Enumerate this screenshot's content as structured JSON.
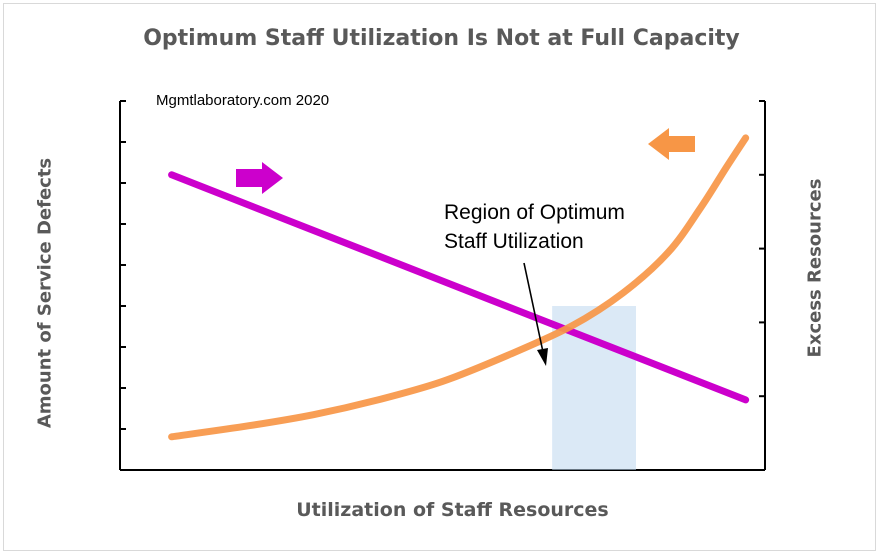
{
  "chart_data": {
    "type": "line",
    "title": "Optimum Staff Utilization Is Not at Full Capacity",
    "xlabel": "Utilization of Staff Resources",
    "ylabel_left": "Amount of Service Defects",
    "ylabel_right": "Excess Resources",
    "xlim": [
      0,
      1
    ],
    "ylim": [
      0,
      1
    ],
    "grid": false,
    "series": [
      {
        "color": "#cc00cc",
        "axis": "left",
        "x": [
          0.08,
          0.97
        ],
        "y": [
          0.8,
          0.19
        ]
      },
      {
        "color": "#f79646",
        "axis": "right",
        "x": [
          0.08,
          0.2,
          0.3,
          0.4,
          0.5,
          0.6,
          0.7,
          0.78,
          0.85,
          0.9,
          0.94,
          0.97
        ],
        "y": [
          0.09,
          0.12,
          0.15,
          0.19,
          0.24,
          0.31,
          0.39,
          0.48,
          0.59,
          0.71,
          0.82,
          0.9
        ]
      }
    ],
    "highlight_region": {
      "x": [
        0.67,
        0.8
      ],
      "color": "#bdd7ee"
    },
    "annotations": {
      "region_label": [
        "Region of Optimum",
        "Staff Utilization"
      ],
      "credit": "Mgmtlaboratory.com 2020"
    },
    "arrows": [
      {
        "direction": "right",
        "color": "#cc00cc"
      },
      {
        "direction": "left",
        "color": "#f79646"
      }
    ]
  }
}
